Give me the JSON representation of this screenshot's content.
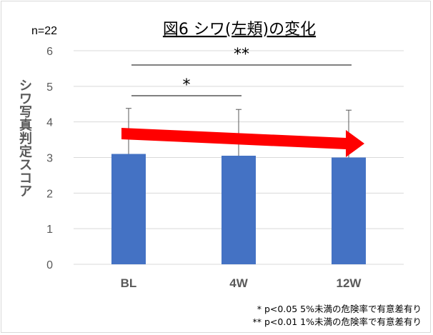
{
  "chart_data": {
    "type": "bar",
    "title": "図6 シワ(左頬)の変化",
    "sample_label": "n=22",
    "ylabel": "シワ写真判定スコア",
    "xlabel": "",
    "categories": [
      "BL",
      "4W",
      "12W"
    ],
    "values": [
      3.1,
      3.05,
      3.0
    ],
    "error_upper": [
      4.38,
      4.35,
      4.33
    ],
    "ylim": [
      0,
      6
    ],
    "yticks": [
      0,
      1,
      2,
      3,
      4,
      5,
      6
    ],
    "grid": true,
    "legend": "none",
    "significance": [
      {
        "from": "BL",
        "to": "4W",
        "label": "*"
      },
      {
        "from": "BL",
        "to": "12W",
        "label": "**"
      }
    ],
    "notes": [
      "*  p<0.05 5%未満の危険率で有意差有り",
      "**  p<0.01 1%未満の危険率で有意差有り"
    ],
    "colors": {
      "bar": "#4472c4",
      "arrow": "#ff0000",
      "grid": "#d9d9d9",
      "text": "#595959",
      "title": "#000000"
    }
  }
}
